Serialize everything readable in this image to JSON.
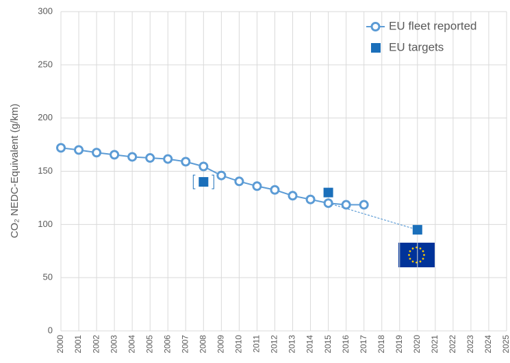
{
  "chart_data": {
    "type": "line",
    "y_label": "CO₂ NEDC-Equivalent (g/km)",
    "xlim": [
      2000,
      2025
    ],
    "xticks": [
      2000,
      2001,
      2002,
      2003,
      2004,
      2005,
      2006,
      2007,
      2008,
      2009,
      2010,
      2011,
      2012,
      2013,
      2014,
      2015,
      2016,
      2017,
      2018,
      2019,
      2020,
      2021,
      2022,
      2023,
      2024,
      2025
    ],
    "ylim": [
      0,
      300
    ],
    "yticks": [
      0,
      50,
      100,
      150,
      200,
      250,
      300
    ],
    "grid": true,
    "legend": "top-right",
    "series": [
      {
        "name": "EU fleet reported",
        "color": "#5b9bd5",
        "marker": "circle",
        "x": [
          2000,
          2001,
          2002,
          2003,
          2004,
          2005,
          2006,
          2007,
          2008,
          2009,
          2010,
          2011,
          2012,
          2013,
          2014,
          2015,
          2016,
          2017
        ],
        "values": [
          172,
          170,
          167.5,
          165.5,
          163.5,
          162.5,
          161.5,
          159,
          154.5,
          146,
          140.5,
          136,
          132.5,
          127,
          123.5,
          120,
          118.5,
          118.5
        ]
      },
      {
        "name": "EU targets",
        "color": "#1b6fba",
        "marker": "square",
        "x": [
          2008,
          2015,
          2020
        ],
        "values": [
          140,
          130,
          95
        ]
      }
    ]
  }
}
